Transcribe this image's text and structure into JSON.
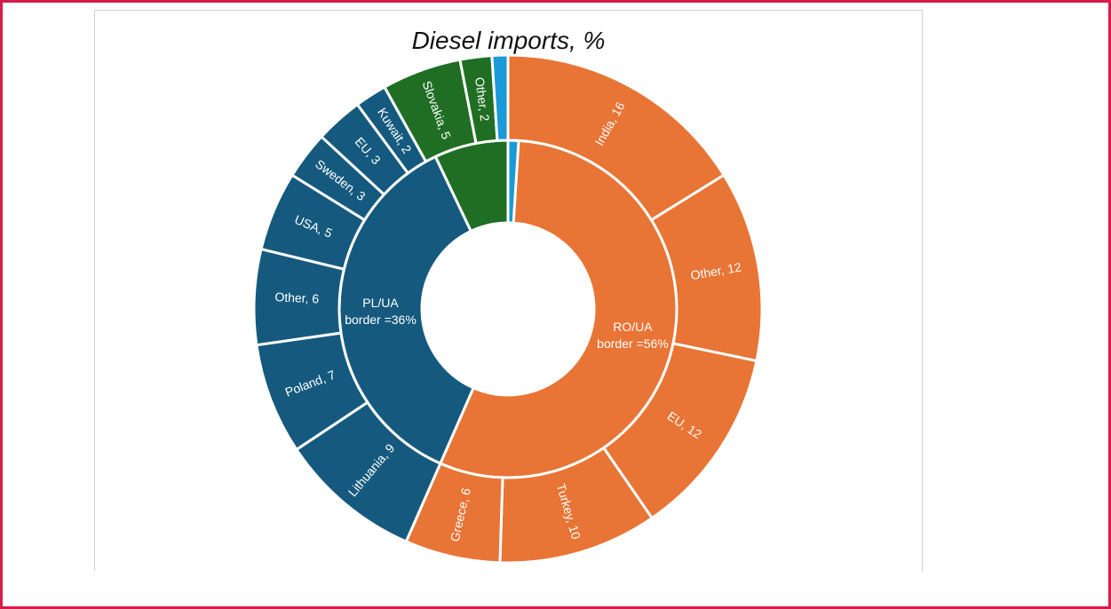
{
  "chart_data": {
    "type": "sunburst",
    "title": "Diesel imports, %",
    "colors": {
      "RO/UA": "#e87435",
      "PL/UA": "#155a7e",
      "Slovakia": "#1f6e24",
      "Other": "#1a9ad6",
      "separator": "#ffffff"
    },
    "inner": [
      {
        "name": "RO/UA",
        "label_lines": [
          "RO/UA",
          "border =56%"
        ],
        "value": 56,
        "group": "RO/UA"
      },
      {
        "name": "PL/UA",
        "label_lines": [
          "PL/UA",
          "border =36%"
        ],
        "value": 36,
        "group": "PL/UA"
      },
      {
        "name": "Slovakia",
        "label_lines": [],
        "value": 7,
        "group": "Slovakia"
      },
      {
        "name": "Other",
        "label_lines": [],
        "value": 1,
        "group": "Other"
      }
    ],
    "outer": [
      {
        "label": "India, 16",
        "value": 16,
        "group": "RO/UA"
      },
      {
        "label": "Other, 12",
        "value": 12,
        "group": "RO/UA"
      },
      {
        "label": "EU, 12",
        "value": 12,
        "group": "RO/UA"
      },
      {
        "label": "Turkey, 10",
        "value": 10,
        "group": "RO/UA"
      },
      {
        "label": "Greece, 6",
        "value": 6,
        "group": "RO/UA"
      },
      {
        "label": "Lithuania, 9",
        "value": 9,
        "group": "PL/UA"
      },
      {
        "label": "Poland, 7",
        "value": 7,
        "group": "PL/UA"
      },
      {
        "label": "Other, 6",
        "value": 6,
        "group": "PL/UA"
      },
      {
        "label": "USA, 5",
        "value": 5,
        "group": "PL/UA"
      },
      {
        "label": "Sweden, 3",
        "value": 3,
        "group": "PL/UA"
      },
      {
        "label": "EU, 3",
        "value": 3,
        "group": "PL/UA"
      },
      {
        "label": "Kuwait, 2",
        "value": 2,
        "group": "PL/UA"
      },
      {
        "label": "Slovakia, 5",
        "value": 5,
        "group": "Slovakia"
      },
      {
        "label": "Other, 2",
        "value": 2,
        "group": "Slovakia"
      },
      {
        "label": "",
        "value": 1,
        "group": "Other"
      }
    ]
  }
}
